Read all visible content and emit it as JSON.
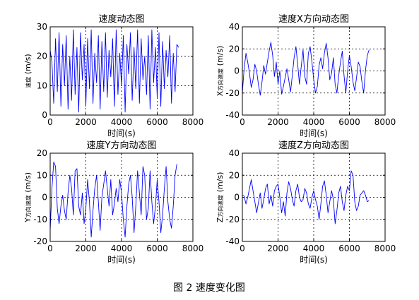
{
  "figure_caption": "图 2  速度变化图",
  "chart_data": [
    {
      "type": "line",
      "title": "速度动态图",
      "xlabel": "时间(s)",
      "ylabel_prefix": "",
      "ylabel_small": "速度",
      "ylabel_unit": " (m/s)",
      "xlim": [
        0,
        8000
      ],
      "ylim": [
        0,
        30
      ],
      "xticks": [
        0,
        2000,
        4000,
        6000,
        8000
      ],
      "yticks": [
        0,
        10,
        20,
        30
      ],
      "grid": true,
      "line_color": "#0000ff",
      "series": [
        {
          "x": [
            0,
            100,
            200,
            300,
            400,
            500,
            600,
            700,
            800,
            900,
            1000,
            1100,
            1200,
            1300,
            1400,
            1500,
            1600,
            1700,
            1800,
            1900,
            2000,
            2100,
            2200,
            2300,
            2400,
            2500,
            2600,
            2700,
            2800,
            2900,
            3000,
            3100,
            3200,
            3300,
            3400,
            3500,
            3600,
            3700,
            3800,
            3900,
            4000,
            4100,
            4200,
            4300,
            4400,
            4500,
            4600,
            4700,
            4800,
            4900,
            5000,
            5100,
            5200,
            5300,
            5400,
            5500,
            5600,
            5700,
            5800,
            5900,
            6000,
            6100,
            6200,
            6300,
            6400,
            6500,
            6600,
            6700,
            6800,
            6900,
            7000,
            7100,
            7200
          ],
          "y": [
            22,
            18,
            4,
            26,
            8,
            28,
            3,
            24,
            10,
            27,
            2,
            20,
            5,
            29,
            7,
            23,
            1,
            28,
            12,
            24,
            3,
            26,
            9,
            29,
            4,
            21,
            11,
            27,
            2,
            25,
            8,
            28,
            6,
            22,
            13,
            26,
            3,
            29,
            7,
            21,
            10,
            27,
            1,
            24,
            14,
            28,
            5,
            23,
            9,
            29,
            4,
            26,
            12,
            20,
            7,
            27,
            2,
            29,
            11,
            23,
            6,
            28,
            3,
            25,
            9,
            22,
            13,
            27,
            4,
            21,
            8,
            24,
            23
          ]
        }
      ]
    },
    {
      "type": "line",
      "title": "速度X方向动态图",
      "xlabel": "时间(s)",
      "ylabel_prefix": "X",
      "ylabel_small": "方向速度",
      "ylabel_unit": " (m/s)",
      "xlim": [
        0,
        8000
      ],
      "ylim": [
        -40,
        40
      ],
      "xticks": [
        0,
        2000,
        4000,
        6000,
        8000
      ],
      "yticks": [
        -40,
        -20,
        0,
        20,
        40
      ],
      "grid": true,
      "line_color": "#0000ff",
      "series": [
        {
          "x": [
            0,
            100,
            200,
            300,
            400,
            500,
            600,
            700,
            800,
            900,
            1000,
            1100,
            1200,
            1300,
            1400,
            1500,
            1600,
            1700,
            1800,
            1900,
            2000,
            2100,
            2200,
            2300,
            2400,
            2500,
            2600,
            2700,
            2800,
            2900,
            3000,
            3100,
            3200,
            3300,
            3400,
            3500,
            3600,
            3700,
            3800,
            3900,
            4000,
            4100,
            4200,
            4300,
            4400,
            4500,
            4600,
            4700,
            4800,
            4900,
            5000,
            5100,
            5200,
            5300,
            5400,
            5500,
            5600,
            5700,
            5800,
            5900,
            6000,
            6100,
            6200,
            6300,
            6400,
            6500,
            6600,
            6700,
            6800,
            6900,
            7000,
            7100
          ],
          "y": [
            -20,
            2,
            16,
            8,
            -2,
            -15,
            -8,
            6,
            0,
            -12,
            -22,
            -10,
            5,
            -3,
            8,
            18,
            26,
            14,
            -5,
            8,
            -12,
            0,
            -21,
            -14,
            -6,
            2,
            -8,
            -19,
            -4,
            12,
            22,
            6,
            -12,
            4,
            19,
            -5,
            -12,
            16,
            22,
            8,
            -8,
            -20,
            -14,
            5,
            12,
            2,
            16,
            25,
            12,
            -8,
            -2,
            12,
            -12,
            -20,
            -4,
            8,
            18,
            -4,
            -20,
            0,
            14,
            4,
            -10,
            -18,
            -6,
            8,
            4,
            -10,
            -20,
            0,
            14,
            19
          ]
        }
      ]
    },
    {
      "type": "line",
      "title": "速度Y方向动态图",
      "xlabel": "时间(s)",
      "ylabel_prefix": "Y",
      "ylabel_small": "方向速度",
      "ylabel_unit": " (m/s)",
      "xlim": [
        0,
        8000
      ],
      "ylim": [
        -20,
        20
      ],
      "xticks": [
        0,
        2000,
        4000,
        6000,
        8000
      ],
      "yticks": [
        -20,
        -10,
        0,
        10,
        20
      ],
      "grid": true,
      "line_color": "#0000ff",
      "series": [
        {
          "x": [
            0,
            100,
            200,
            300,
            400,
            500,
            600,
            700,
            800,
            900,
            1000,
            1100,
            1200,
            1300,
            1400,
            1500,
            1600,
            1700,
            1800,
            1900,
            2000,
            2100,
            2200,
            2300,
            2400,
            2500,
            2600,
            2700,
            2800,
            2900,
            3000,
            3100,
            3200,
            3300,
            3400,
            3500,
            3600,
            3700,
            3800,
            3900,
            4000,
            4100,
            4200,
            4300,
            4400,
            4500,
            4600,
            4700,
            4800,
            4900,
            5000,
            5100,
            5200,
            5300,
            5400,
            5500,
            5600,
            5700,
            5800,
            5900,
            6000,
            6100,
            6200,
            6300,
            6400,
            6500,
            6600,
            6700,
            6800,
            6900,
            7000,
            7100
          ],
          "y": [
            -15,
            4,
            16,
            14,
            -5,
            -12,
            -4,
            1,
            -6,
            -10,
            2,
            10,
            4,
            -8,
            12,
            13,
            -4,
            -8,
            2,
            -12,
            -5,
            8,
            -2,
            -18,
            -6,
            4,
            10,
            -2,
            -15,
            0,
            6,
            12,
            4,
            -4,
            8,
            -8,
            -3,
            4,
            -2,
            8,
            2,
            -10,
            -18,
            -4,
            6,
            10,
            0,
            -16,
            -4,
            12,
            2,
            -8,
            14,
            10,
            -10,
            -5,
            12,
            -2,
            -12,
            -4,
            8,
            -2,
            -16,
            -8,
            4,
            14,
            -2,
            -10,
            -14,
            -4,
            10,
            15
          ]
        }
      ]
    },
    {
      "type": "line",
      "title": "速度Z方向动态图",
      "xlabel": "时间(s)",
      "ylabel_prefix": "Z",
      "ylabel_small": "方向速度",
      "ylabel_unit": " (m/s)",
      "xlim": [
        0,
        8000
      ],
      "ylim": [
        -40,
        40
      ],
      "xticks": [
        0,
        2000,
        4000,
        6000,
        8000
      ],
      "yticks": [
        -40,
        -20,
        0,
        20,
        40
      ],
      "grid": true,
      "line_color": "#0000ff",
      "series": [
        {
          "x": [
            0,
            100,
            200,
            300,
            400,
            500,
            600,
            700,
            800,
            900,
            1000,
            1100,
            1200,
            1300,
            1400,
            1500,
            1600,
            1700,
            1800,
            1900,
            2000,
            2100,
            2200,
            2300,
            2400,
            2500,
            2600,
            2700,
            2800,
            2900,
            3000,
            3100,
            3200,
            3300,
            3400,
            3500,
            3600,
            3700,
            3800,
            3900,
            4000,
            4100,
            4200,
            4300,
            4400,
            4500,
            4600,
            4700,
            4800,
            4900,
            5000,
            5100,
            5200,
            5300,
            5400,
            5500,
            5600,
            5700,
            5800,
            5900,
            6000,
            6100,
            6200,
            6300,
            6400,
            6500,
            6600,
            6700,
            6800,
            6900,
            7000,
            7100
          ],
          "y": [
            2,
            1,
            -6,
            0,
            8,
            16,
            6,
            -4,
            -14,
            -5,
            4,
            -10,
            -2,
            8,
            12,
            -6,
            2,
            -8,
            6,
            10,
            12,
            0,
            -14,
            -4,
            -17,
            4,
            14,
            8,
            -2,
            -8,
            6,
            12,
            0,
            -4,
            -2,
            8,
            4,
            -6,
            -10,
            0,
            6,
            -2,
            -8,
            -20,
            -6,
            10,
            15,
            2,
            -14,
            -4,
            6,
            -2,
            -24,
            -12,
            4,
            10,
            -4,
            -12,
            2,
            10,
            6,
            24,
            20,
            -4,
            -12,
            -8,
            2,
            4,
            6,
            2,
            -4,
            -3
          ]
        }
      ]
    }
  ]
}
